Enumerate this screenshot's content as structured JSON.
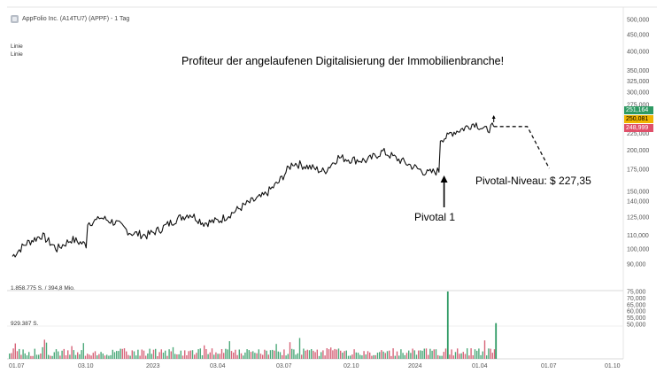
{
  "header": {
    "instrument": "AppFolio Inc. (A14TU7) (APPF) - 1 Tag",
    "chart_type_label_1": "Linie",
    "chart_type_label_2": "Linie"
  },
  "chart_data": {
    "type": "line",
    "title": "Profiteur der angelaufenen Digitalisierung der Immobilienbranche!",
    "yscale": "log",
    "y_ticks": [
      "500,000",
      "450,000",
      "400,000",
      "350,000",
      "325,000",
      "300,000",
      "275,000",
      "225,000",
      "200,000",
      "175,000",
      "150,000",
      "140,000",
      "125,000",
      "110,000",
      "100,000",
      "90,000"
    ],
    "y_tick_values": [
      500,
      450,
      400,
      350,
      325,
      300,
      275,
      225,
      200,
      175,
      150,
      140,
      125,
      110,
      100,
      90
    ],
    "x_ticks": [
      "01.07",
      "03.10",
      "2023",
      "03.04",
      "03.07",
      "02.10",
      "2024",
      "01.04",
      "01.07",
      "01.10"
    ],
    "price_series": [
      {
        "date": "2022-07-01",
        "close": 95
      },
      {
        "date": "2022-07-20",
        "close": 104
      },
      {
        "date": "2022-08-10",
        "close": 110
      },
      {
        "date": "2022-08-31",
        "close": 100
      },
      {
        "date": "2022-09-20",
        "close": 107
      },
      {
        "date": "2022-10-10",
        "close": 103
      },
      {
        "date": "2022-10-28",
        "close": 125
      },
      {
        "date": "2022-11-20",
        "close": 120
      },
      {
        "date": "2022-12-10",
        "close": 112
      },
      {
        "date": "2023-01-01",
        "close": 110
      },
      {
        "date": "2023-01-20",
        "close": 115
      },
      {
        "date": "2023-02-10",
        "close": 123
      },
      {
        "date": "2023-03-01",
        "close": 128
      },
      {
        "date": "2023-03-20",
        "close": 120
      },
      {
        "date": "2023-04-10",
        "close": 122
      },
      {
        "date": "2023-05-01",
        "close": 130
      },
      {
        "date": "2023-05-20",
        "close": 138
      },
      {
        "date": "2023-06-10",
        "close": 145
      },
      {
        "date": "2023-07-01",
        "close": 160
      },
      {
        "date": "2023-07-20",
        "close": 183
      },
      {
        "date": "2023-08-10",
        "close": 178
      },
      {
        "date": "2023-09-01",
        "close": 172
      },
      {
        "date": "2023-09-20",
        "close": 190
      },
      {
        "date": "2023-10-10",
        "close": 187
      },
      {
        "date": "2023-10-30",
        "close": 186
      },
      {
        "date": "2023-11-20",
        "close": 198
      },
      {
        "date": "2023-12-10",
        "close": 188
      },
      {
        "date": "2024-01-01",
        "close": 178
      },
      {
        "date": "2024-01-20",
        "close": 170
      },
      {
        "date": "2024-02-05",
        "close": 173
      },
      {
        "date": "2024-02-20",
        "close": 225
      },
      {
        "date": "2024-03-10",
        "close": 233
      },
      {
        "date": "2024-03-25",
        "close": 242
      },
      {
        "date": "2024-04-08",
        "close": 230
      },
      {
        "date": "2024-04-20",
        "close": 236
      }
    ],
    "volume_axis_ticks": [
      "75,000",
      "70,000",
      "65,000",
      "60,000",
      "55,000",
      "50,000"
    ],
    "volume_axis_values": [
      75000,
      70000,
      65000,
      60000,
      55000,
      50000
    ],
    "volume_readouts": [
      "1.858.775 S. / 394,8 Mio.",
      "929.387 S."
    ],
    "volume_spikes": [
      {
        "date": "2024-02-16",
        "volume_share": 1.0
      },
      {
        "date": "2024-04-22",
        "volume_share": 0.53
      }
    ],
    "price_labels": [
      {
        "text": "251,164",
        "color": "#2e9a63"
      },
      {
        "text": "250,081",
        "color": "#f0b400"
      },
      {
        "text": "248,999",
        "color": "#e0506a"
      }
    ],
    "annotations": {
      "pivotal_point": "Pivotal 1",
      "pivotal_level": "Pivotal-Niveau: $  227,35"
    },
    "pivot_level_value": 227.35,
    "projection": [
      {
        "date": "2024-04-20",
        "close": 236
      },
      {
        "date": "2024-06-05",
        "close": 236
      },
      {
        "date": "2024-07-05",
        "close": 176
      }
    ]
  }
}
